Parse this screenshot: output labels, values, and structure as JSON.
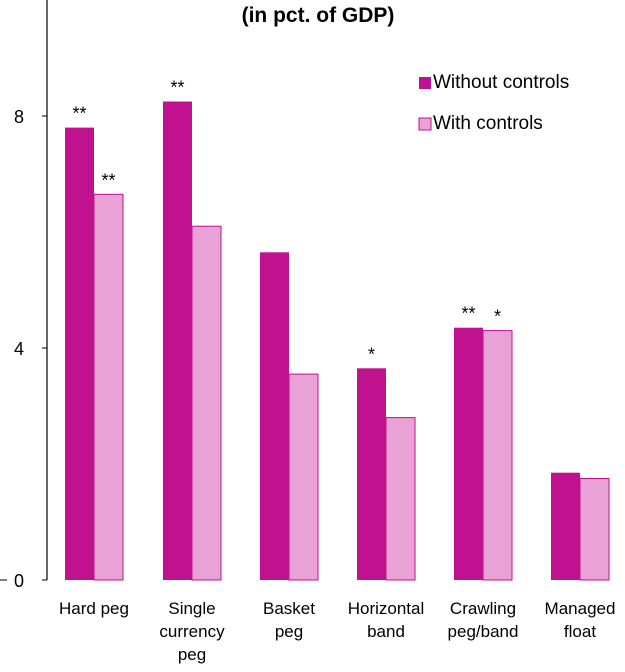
{
  "chart_data": {
    "type": "bar",
    "title": "(in pct. of GDP)",
    "xlabel": "",
    "ylabel": "",
    "categories": [
      [
        "Hard peg"
      ],
      [
        "Single",
        "currency",
        "peg"
      ],
      [
        "Basket",
        "peg"
      ],
      [
        "Horizontal",
        "band"
      ],
      [
        "Crawling",
        "peg/band"
      ],
      [
        "Managed",
        "float"
      ]
    ],
    "series": [
      {
        "name": "Without controls",
        "color": "#c0118f",
        "values": [
          7.8,
          8.25,
          5.65,
          3.65,
          4.35,
          1.85
        ],
        "significance": [
          "**",
          "**",
          "",
          "*",
          "**",
          ""
        ]
      },
      {
        "name": "With controls",
        "color": "#e8a2d6",
        "values": [
          6.65,
          6.1,
          3.55,
          2.8,
          4.3,
          1.75
        ],
        "significance": [
          "**",
          "",
          "",
          "",
          "*",
          ""
        ]
      }
    ],
    "ylim": [
      0,
      10
    ],
    "yticks": [
      0,
      4,
      8
    ],
    "grid": false,
    "legend_position": "top-right"
  }
}
